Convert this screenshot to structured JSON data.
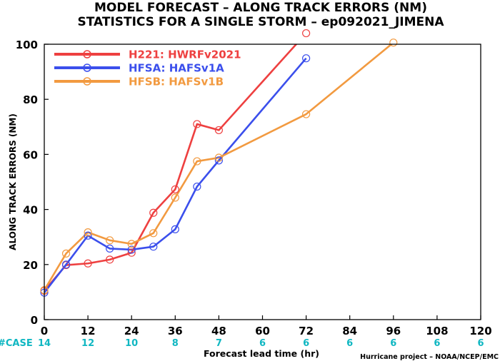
{
  "chart_data": {
    "type": "line",
    "title": "MODEL FORECAST – ALONG TRACK ERRORS (NM)",
    "subtitle": "STATISTICS FOR A SINGLE STORM – ep092021_JIMENA",
    "xlabel": "Forecast lead time (hr)",
    "ylabel": "ALONG TRACK ERRORS (NM)",
    "xlim": [
      0,
      120
    ],
    "ylim": [
      0,
      100
    ],
    "x_ticks": [
      "0",
      "12",
      "24",
      "36",
      "48",
      "60",
      "72",
      "84",
      "96",
      "108",
      "120"
    ],
    "y_ticks": [
      "0",
      "20",
      "40",
      "60",
      "80",
      "100"
    ],
    "case_label": "#CASE",
    "case_counts": [
      "14",
      "12",
      "10",
      "8",
      "7",
      "6",
      "6",
      "6",
      "6",
      "6",
      "6"
    ],
    "credit": "Hurricane project – NOAA/NCEP/EMC",
    "legend_position": "top-left",
    "grid": false,
    "series": [
      {
        "name": "H221: HWRFv2021",
        "color": "#ee4040",
        "x": [
          0,
          6,
          12,
          18,
          24,
          30,
          36,
          42,
          48,
          72
        ],
        "y": [
          10.5,
          19.8,
          20.4,
          21.8,
          24.3,
          38.8,
          47.3,
          71.0,
          68.8,
          104.0
        ]
      },
      {
        "name": "HFSA: HAFSv1A",
        "color": "#3b4fec",
        "x": [
          0,
          6,
          12,
          18,
          24,
          30,
          36,
          42,
          48,
          72
        ],
        "y": [
          9.8,
          20.0,
          30.5,
          25.8,
          25.4,
          26.5,
          32.8,
          48.3,
          57.8,
          94.9
        ]
      },
      {
        "name": "HFSB: HAFSv1B",
        "color": "#f29a40",
        "x": [
          0,
          6,
          12,
          18,
          24,
          30,
          36,
          42,
          48,
          72,
          96
        ],
        "y": [
          10.7,
          24.0,
          31.7,
          28.8,
          27.5,
          31.4,
          44.3,
          57.5,
          58.8,
          74.6,
          100.6
        ]
      }
    ]
  }
}
